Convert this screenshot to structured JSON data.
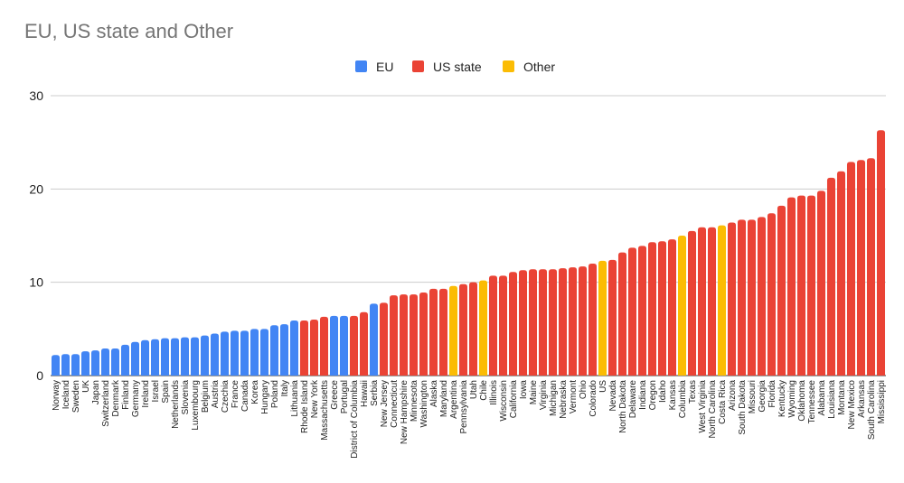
{
  "chart_data": {
    "type": "bar",
    "title": "EU, US state and Other",
    "xlabel": "",
    "ylabel": "",
    "ylim": [
      0,
      30
    ],
    "yticks": [
      0,
      10,
      20,
      30
    ],
    "legend_position": "top-center",
    "grid": true,
    "groups": [
      {
        "name": "EU",
        "color": "#4285f4"
      },
      {
        "name": "US state",
        "color": "#ea4335"
      },
      {
        "name": "Other",
        "color": "#fbbc04"
      }
    ],
    "bars": [
      {
        "label": "Norway",
        "value": 2.2,
        "group": "EU"
      },
      {
        "label": "Iceland",
        "value": 2.3,
        "group": "EU"
      },
      {
        "label": "Sweden",
        "value": 2.3,
        "group": "EU"
      },
      {
        "label": "UK",
        "value": 2.6,
        "group": "EU"
      },
      {
        "label": "Japan",
        "value": 2.7,
        "group": "EU"
      },
      {
        "label": "Switzerland",
        "value": 2.9,
        "group": "EU"
      },
      {
        "label": "Denmark",
        "value": 2.9,
        "group": "EU"
      },
      {
        "label": "Finland",
        "value": 3.3,
        "group": "EU"
      },
      {
        "label": "Germany",
        "value": 3.6,
        "group": "EU"
      },
      {
        "label": "Ireland",
        "value": 3.8,
        "group": "EU"
      },
      {
        "label": "Israel",
        "value": 3.9,
        "group": "EU"
      },
      {
        "label": "Spain",
        "value": 4.0,
        "group": "EU"
      },
      {
        "label": "Netherlands",
        "value": 4.0,
        "group": "EU"
      },
      {
        "label": "Slovenia",
        "value": 4.1,
        "group": "EU"
      },
      {
        "label": "Luxembourg",
        "value": 4.1,
        "group": "EU"
      },
      {
        "label": "Belgium",
        "value": 4.3,
        "group": "EU"
      },
      {
        "label": "Austria",
        "value": 4.5,
        "group": "EU"
      },
      {
        "label": "Czechia",
        "value": 4.7,
        "group": "EU"
      },
      {
        "label": "France",
        "value": 4.8,
        "group": "EU"
      },
      {
        "label": "Canada",
        "value": 4.8,
        "group": "EU"
      },
      {
        "label": "Korea",
        "value": 5.0,
        "group": "EU"
      },
      {
        "label": "Hungary",
        "value": 5.0,
        "group": "EU"
      },
      {
        "label": "Poland",
        "value": 5.4,
        "group": "EU"
      },
      {
        "label": "Italy",
        "value": 5.5,
        "group": "EU"
      },
      {
        "label": "Lithuania",
        "value": 5.9,
        "group": "EU"
      },
      {
        "label": "Rhode Island",
        "value": 5.9,
        "group": "US state"
      },
      {
        "label": "New York",
        "value": 6.0,
        "group": "US state"
      },
      {
        "label": "Massachusetts",
        "value": 6.3,
        "group": "US state"
      },
      {
        "label": "Greece",
        "value": 6.4,
        "group": "EU"
      },
      {
        "label": "Portugal",
        "value": 6.4,
        "group": "EU"
      },
      {
        "label": "District of Columbia",
        "value": 6.4,
        "group": "US state"
      },
      {
        "label": "Hawaii",
        "value": 6.8,
        "group": "US state"
      },
      {
        "label": "Serbia",
        "value": 7.7,
        "group": "EU"
      },
      {
        "label": "New Jersey",
        "value": 7.8,
        "group": "US state"
      },
      {
        "label": "Connecticut",
        "value": 8.6,
        "group": "US state"
      },
      {
        "label": "New Hampshire",
        "value": 8.7,
        "group": "US state"
      },
      {
        "label": "Minnesota",
        "value": 8.7,
        "group": "US state"
      },
      {
        "label": "Washington",
        "value": 8.9,
        "group": "US state"
      },
      {
        "label": "Alaska",
        "value": 9.3,
        "group": "US state"
      },
      {
        "label": "Maryland",
        "value": 9.3,
        "group": "US state"
      },
      {
        "label": "Argentina",
        "value": 9.6,
        "group": "Other"
      },
      {
        "label": "Pennsylvania",
        "value": 9.8,
        "group": "US state"
      },
      {
        "label": "Utah",
        "value": 10.0,
        "group": "US state"
      },
      {
        "label": "Chile",
        "value": 10.2,
        "group": "Other"
      },
      {
        "label": "Illinois",
        "value": 10.7,
        "group": "US state"
      },
      {
        "label": "Wisconsin",
        "value": 10.7,
        "group": "US state"
      },
      {
        "label": "California",
        "value": 11.1,
        "group": "US state"
      },
      {
        "label": "Iowa",
        "value": 11.3,
        "group": "US state"
      },
      {
        "label": "Maine",
        "value": 11.4,
        "group": "US state"
      },
      {
        "label": "Virginia",
        "value": 11.4,
        "group": "US state"
      },
      {
        "label": "Michigan",
        "value": 11.4,
        "group": "US state"
      },
      {
        "label": "Nebraska",
        "value": 11.5,
        "group": "US state"
      },
      {
        "label": "Vermont",
        "value": 11.6,
        "group": "US state"
      },
      {
        "label": "Ohio",
        "value": 11.7,
        "group": "US state"
      },
      {
        "label": "Colorado",
        "value": 12.0,
        "group": "US state"
      },
      {
        "label": "US",
        "value": 12.3,
        "group": "Other"
      },
      {
        "label": "Nevada",
        "value": 12.4,
        "group": "US state"
      },
      {
        "label": "North Dakota",
        "value": 13.2,
        "group": "US state"
      },
      {
        "label": "Delaware",
        "value": 13.7,
        "group": "US state"
      },
      {
        "label": "Indiana",
        "value": 13.9,
        "group": "US state"
      },
      {
        "label": "Oregon",
        "value": 14.3,
        "group": "US state"
      },
      {
        "label": "Idaho",
        "value": 14.4,
        "group": "US state"
      },
      {
        "label": "Kansas",
        "value": 14.6,
        "group": "US state"
      },
      {
        "label": "Columbia",
        "value": 15.0,
        "group": "Other"
      },
      {
        "label": "Texas",
        "value": 15.5,
        "group": "US state"
      },
      {
        "label": "West Virginia",
        "value": 15.9,
        "group": "US state"
      },
      {
        "label": "North Carolina",
        "value": 15.9,
        "group": "US state"
      },
      {
        "label": "Costa Rica",
        "value": 16.1,
        "group": "Other"
      },
      {
        "label": "Arizona",
        "value": 16.4,
        "group": "US state"
      },
      {
        "label": "South Dakota",
        "value": 16.7,
        "group": "US state"
      },
      {
        "label": "Missouri",
        "value": 16.7,
        "group": "US state"
      },
      {
        "label": "Georgia",
        "value": 17.0,
        "group": "US state"
      },
      {
        "label": "Florida",
        "value": 17.4,
        "group": "US state"
      },
      {
        "label": "Kentucky",
        "value": 18.2,
        "group": "US state"
      },
      {
        "label": "Wyoming",
        "value": 19.1,
        "group": "US state"
      },
      {
        "label": "Oklahoma",
        "value": 19.3,
        "group": "US state"
      },
      {
        "label": "Tennessee",
        "value": 19.3,
        "group": "US state"
      },
      {
        "label": "Alabama",
        "value": 19.8,
        "group": "US state"
      },
      {
        "label": "Louisiana",
        "value": 21.2,
        "group": "US state"
      },
      {
        "label": "Montana",
        "value": 21.9,
        "group": "US state"
      },
      {
        "label": "New Mexico",
        "value": 22.9,
        "group": "US state"
      },
      {
        "label": "Arkansas",
        "value": 23.1,
        "group": "US state"
      },
      {
        "label": "South Carolina",
        "value": 23.3,
        "group": "US state"
      },
      {
        "label": "Mississippi",
        "value": 26.3,
        "group": "US state"
      }
    ]
  }
}
